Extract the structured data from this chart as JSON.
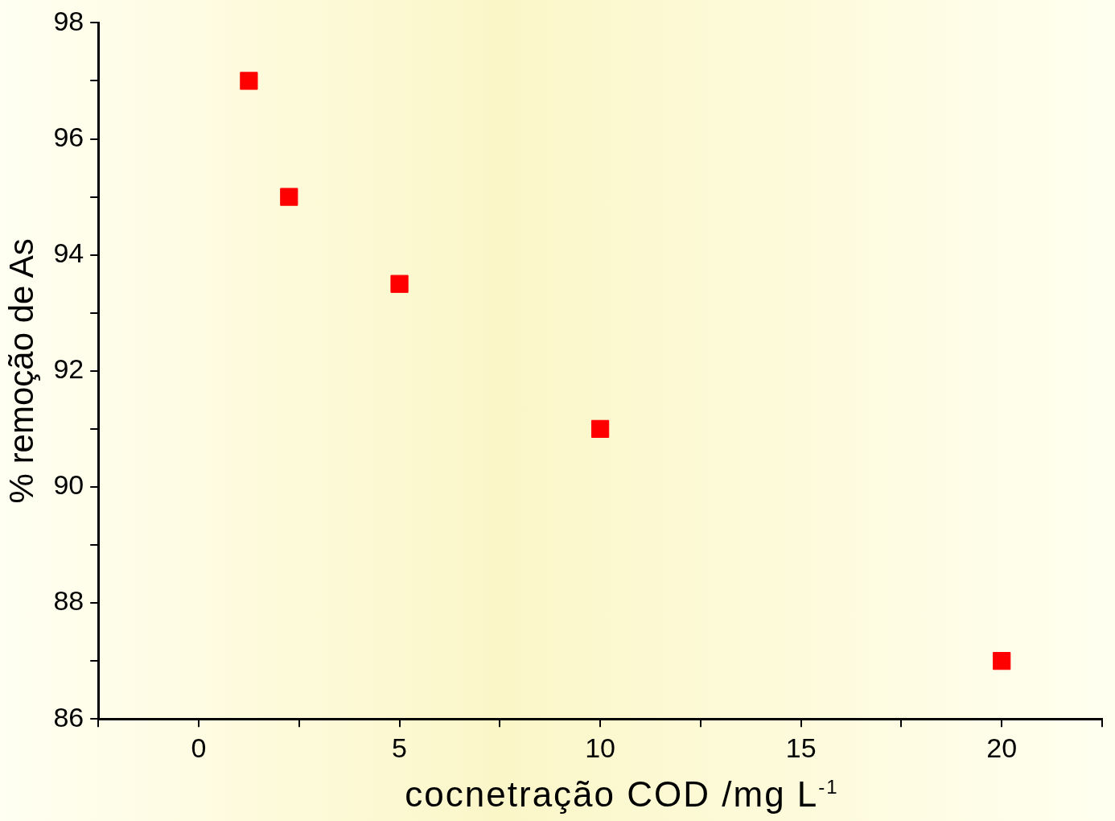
{
  "chart_data": {
    "type": "scatter",
    "xlabel": "cocnetração COD /mg L$^{-1}$",
    "ylabel": "% remoção de As",
    "x": [
      1.25,
      2.25,
      5,
      10,
      20
    ],
    "values": [
      97,
      95,
      93.5,
      91,
      87
    ],
    "color": "#ff0000",
    "marker": "square",
    "grid": false,
    "legend": false,
    "xlim": [
      -2.5,
      22.5
    ],
    "xticks": [
      {
        "value": -2.5,
        "label": null
      },
      0,
      {
        "value": 2.5,
        "label": null
      },
      5,
      {
        "value": 7.5,
        "label": null
      },
      10,
      {
        "value": 12.5,
        "label": null
      },
      15,
      {
        "value": 17.5,
        "label": null
      },
      20,
      {
        "value": 22.5,
        "label": null
      }
    ],
    "ylim": [
      86,
      98
    ],
    "yticks": [
      86,
      {
        "value": 87,
        "label": null
      },
      88,
      {
        "value": 89,
        "label": null
      },
      90,
      {
        "value": 91,
        "label": null
      },
      92,
      {
        "value": 93,
        "label": null
      },
      94,
      {
        "value": 95,
        "label": null
      },
      96,
      {
        "value": 97,
        "label": null
      },
      98
    ]
  }
}
